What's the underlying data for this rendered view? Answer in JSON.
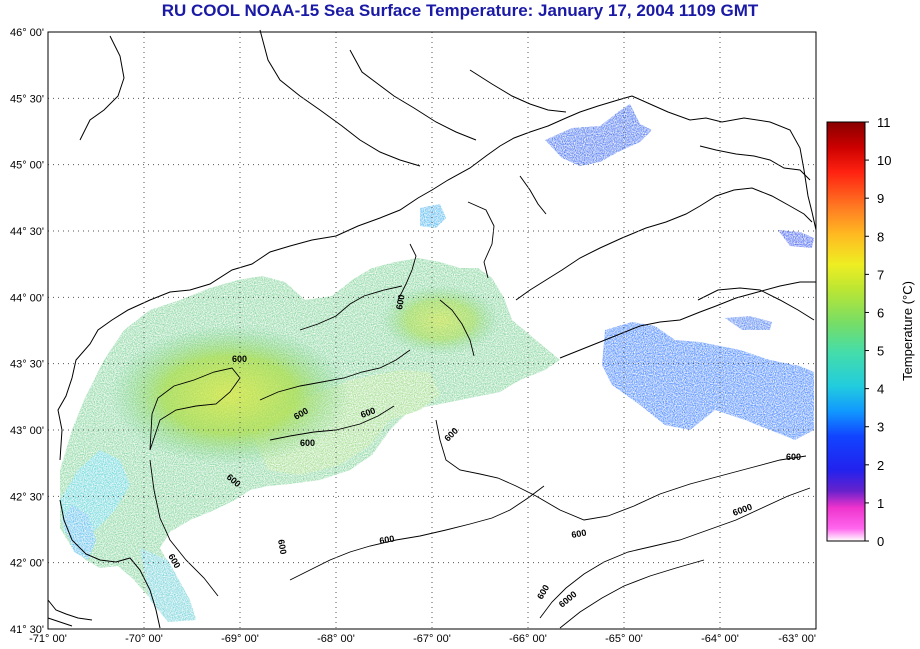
{
  "title": "RU COOL  NOAA-15  Sea Surface Temperature:  January 17, 2004 1109 GMT",
  "map": {
    "lat_labels": [
      "46° 00'",
      "45° 30'",
      "45° 00'",
      "44° 30'",
      "44° 00'",
      "43° 30'",
      "43° 00'",
      "42° 30'",
      "42° 00'",
      "41° 30'"
    ],
    "lon_labels": [
      "-71° 00'",
      "-70° 00'",
      "-69° 00'",
      "-68° 00'",
      "-67° 00'",
      "-66° 00'",
      "-65° 00'",
      "-64° 00'",
      "-63° 00'"
    ],
    "lat_range": [
      41.5,
      46.0
    ],
    "lon_range": [
      -71.0,
      -63.0
    ],
    "grid": "dotted",
    "contour_labels": [
      "600",
      "600",
      "600",
      "600",
      "600",
      "600",
      "600",
      "600",
      "600",
      "600",
      "600",
      "600",
      "6000",
      "6000",
      "600"
    ]
  },
  "colorbar": {
    "title": "Temperature (°C)",
    "ticks": [
      "0",
      "1",
      "2",
      "3",
      "4",
      "5",
      "6",
      "7",
      "8",
      "9",
      "10",
      "11"
    ],
    "range": [
      0,
      11
    ],
    "colors": [
      "#ffffff",
      "#ff44dd",
      "#3311cc",
      "#1133ff",
      "#22aaff",
      "#22ddcc",
      "#66dd66",
      "#ddee33",
      "#ffaa22",
      "#ff5522",
      "#ff0000",
      "#8b0000"
    ]
  }
}
